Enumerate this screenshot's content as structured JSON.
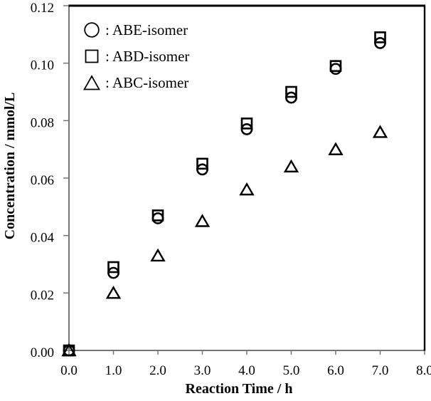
{
  "figure": {
    "background": "#ffffff",
    "axis_line_color": "#757575",
    "frame_color": "#000000",
    "marker_color": "#000000",
    "text_color": "#000000"
  },
  "legend": {
    "items": [
      {
        "symbol": "circle-marker",
        "label": ": ABE-isomer"
      },
      {
        "symbol": "square-marker",
        "label": ": ABD-isomer"
      },
      {
        "symbol": "triangle-marker",
        "label": ": ABC-isomer"
      }
    ]
  },
  "chart_data": {
    "type": "scatter",
    "title": "",
    "xlabel": "Reaction Time / h",
    "ylabel": "Concentration / mmol/L",
    "xlim": [
      0,
      8
    ],
    "ylim": [
      0,
      0.12
    ],
    "grid": false,
    "legend_position": "top-left-inside",
    "x_ticks": [
      0,
      1,
      2,
      3,
      4,
      5,
      6,
      7,
      8
    ],
    "x_tick_labels": [
      "0.0",
      "1.0",
      "2.0",
      "3.0",
      "4.0",
      "5.0",
      "6.0",
      "7.0",
      "8.0"
    ],
    "y_ticks": [
      0,
      0.02,
      0.04,
      0.06,
      0.08,
      0.1,
      0.12
    ],
    "y_tick_labels": [
      "0.00",
      "0.02",
      "0.04",
      "0.06",
      "0.08",
      "0.10",
      "0.12"
    ],
    "x": [
      0,
      1,
      2,
      3,
      4,
      5,
      6,
      7
    ],
    "series": [
      {
        "name": "ABE-isomer",
        "marker": "circle",
        "values": [
          0.0,
          0.027,
          0.046,
          0.063,
          0.077,
          0.088,
          0.098,
          0.107
        ]
      },
      {
        "name": "ABD-isomer",
        "marker": "square",
        "values": [
          0.0,
          0.029,
          0.047,
          0.065,
          0.079,
          0.09,
          0.099,
          0.109
        ]
      },
      {
        "name": "ABC-isomer",
        "marker": "triangle",
        "values": [
          0.0,
          0.02,
          0.033,
          0.045,
          0.056,
          0.064,
          0.07,
          0.076
        ]
      }
    ]
  }
}
